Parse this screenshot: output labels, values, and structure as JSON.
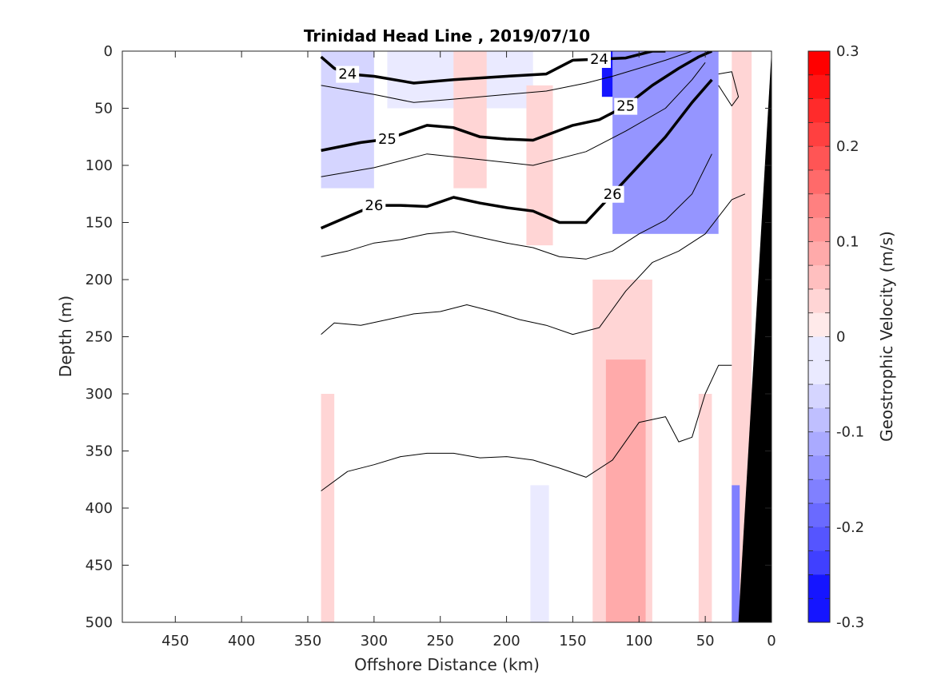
{
  "chart_data": {
    "type": "contour",
    "title": "Trinidad Head Line , 2019/07/10",
    "xlabel": "Offshore Distance (km)",
    "ylabel": "Depth (m)",
    "xlim": [
      0,
      490
    ],
    "x_reversed": true,
    "x_ticks": [
      450,
      400,
      350,
      300,
      250,
      200,
      150,
      100,
      50,
      0
    ],
    "ylim": [
      0,
      500
    ],
    "y_reversed": true,
    "y_ticks": [
      0,
      50,
      100,
      150,
      200,
      250,
      300,
      350,
      400,
      450,
      500
    ],
    "colorbar": {
      "label": "Geostrophic Velocity (m/s)",
      "range": [
        -0.3,
        0.3
      ],
      "levels": 24,
      "ticks": [
        0.3,
        0.2,
        0.1,
        0,
        -0.1,
        -0.2,
        -0.3
      ],
      "tick_labels": [
        "0.3",
        "0.2",
        "0.1",
        "0",
        "-0.1",
        "-0.2",
        "-0.3"
      ],
      "neg_color": "#0000ff",
      "pos_color": "#ff0000",
      "zero_color": "#ffffff"
    },
    "velocity_features": [
      {
        "x": [
          128,
          62
        ],
        "depth": [
          0,
          40
        ],
        "v": -0.28
      },
      {
        "x": [
          120,
          40
        ],
        "depth": [
          0,
          160
        ],
        "v": -0.12
      },
      {
        "x": [
          340,
          300
        ],
        "depth": [
          0,
          120
        ],
        "v": -0.05
      },
      {
        "x": [
          290,
          180
        ],
        "depth": [
          0,
          50
        ],
        "v": -0.03
      },
      {
        "x": [
          240,
          215
        ],
        "depth": [
          0,
          120
        ],
        "v": 0.04
      },
      {
        "x": [
          185,
          165
        ],
        "depth": [
          30,
          170
        ],
        "v": 0.06
      },
      {
        "x": [
          135,
          90
        ],
        "depth": [
          200,
          500
        ],
        "v": 0.05
      },
      {
        "x": [
          125,
          95
        ],
        "depth": [
          270,
          500
        ],
        "v": 0.1
      },
      {
        "x": [
          55,
          45
        ],
        "depth": [
          300,
          500
        ],
        "v": 0.06
      },
      {
        "x": [
          30,
          15
        ],
        "depth": [
          0,
          500
        ],
        "v": 0.05
      },
      {
        "x": [
          340,
          330
        ],
        "depth": [
          300,
          500
        ],
        "v": 0.05
      },
      {
        "x": [
          182,
          168
        ],
        "depth": [
          380,
          500
        ],
        "v": -0.03
      },
      {
        "x": [
          30,
          24
        ],
        "depth": [
          380,
          500
        ],
        "v": -0.15
      }
    ],
    "isopycnals": [
      {
        "sigma": 24,
        "bold": true,
        "labeled": true,
        "x": [
          340,
          330,
          320,
          300,
          270,
          240,
          200,
          170,
          150,
          130,
          110,
          90,
          80
        ],
        "depth": [
          5,
          15,
          20,
          22,
          28,
          25,
          22,
          20,
          8,
          7,
          6,
          0,
          0
        ]
      },
      {
        "sigma": 24.5,
        "bold": false,
        "labeled": false,
        "x": [
          340,
          300,
          270,
          240,
          200,
          170,
          140,
          120,
          100,
          80,
          60
        ],
        "depth": [
          30,
          38,
          45,
          42,
          38,
          35,
          28,
          22,
          15,
          8,
          0
        ]
      },
      {
        "sigma": 25,
        "bold": true,
        "labeled": true,
        "x": [
          340,
          310,
          290,
          260,
          240,
          220,
          200,
          180,
          150,
          130,
          110,
          90,
          70,
          55,
          45
        ],
        "depth": [
          87,
          80,
          77,
          65,
          67,
          75,
          77,
          78,
          65,
          60,
          48,
          30,
          15,
          5,
          0
        ]
      },
      {
        "sigma": 25.5,
        "bold": false,
        "labeled": false,
        "x": [
          340,
          300,
          260,
          220,
          180,
          140,
          110,
          80,
          60,
          50
        ],
        "depth": [
          110,
          102,
          90,
          95,
          100,
          88,
          70,
          50,
          25,
          10
        ]
      },
      {
        "sigma": 26,
        "bold": true,
        "labeled": true,
        "x": [
          340,
          320,
          300,
          280,
          260,
          240,
          220,
          200,
          180,
          160,
          140,
          120,
          100,
          80,
          60,
          45
        ],
        "depth": [
          155,
          145,
          135,
          135,
          136,
          128,
          133,
          137,
          140,
          150,
          150,
          125,
          100,
          75,
          45,
          25
        ]
      },
      {
        "sigma": 26.3,
        "bold": false,
        "labeled": false,
        "x": [
          340,
          320,
          300,
          280,
          260,
          240,
          220,
          200,
          180,
          160,
          140,
          120,
          100,
          80,
          60,
          45
        ],
        "depth": [
          180,
          175,
          168,
          165,
          160,
          158,
          163,
          168,
          172,
          180,
          182,
          175,
          160,
          148,
          125,
          90
        ]
      },
      {
        "sigma": 26.5,
        "bold": false,
        "labeled": false,
        "x": [
          340,
          330,
          310,
          290,
          270,
          250,
          230,
          210,
          190,
          170,
          150,
          130,
          110,
          90,
          70,
          50,
          30,
          20
        ],
        "depth": [
          248,
          238,
          240,
          235,
          230,
          228,
          222,
          228,
          235,
          240,
          248,
          242,
          210,
          185,
          175,
          160,
          130,
          125
        ]
      },
      {
        "sigma": 26.7,
        "bold": false,
        "labeled": false,
        "x": [
          340,
          320,
          300,
          280,
          260,
          240,
          220,
          200,
          180,
          160,
          140,
          120,
          100,
          80,
          70,
          60,
          50,
          40,
          30
        ],
        "depth": [
          385,
          368,
          362,
          355,
          352,
          352,
          356,
          355,
          358,
          365,
          373,
          358,
          325,
          320,
          342,
          338,
          300,
          275,
          275
        ]
      },
      {
        "sigma": 25.8,
        "bold": false,
        "labeled": false,
        "x": [
          40,
          30,
          25,
          30,
          40
        ],
        "depth": [
          20,
          18,
          40,
          48,
          30
        ]
      }
    ],
    "bathymetry": {
      "x": [
        0,
        25,
        25,
        0
      ],
      "depth": [
        0,
        500,
        500,
        500
      ],
      "color": "#000000"
    }
  }
}
